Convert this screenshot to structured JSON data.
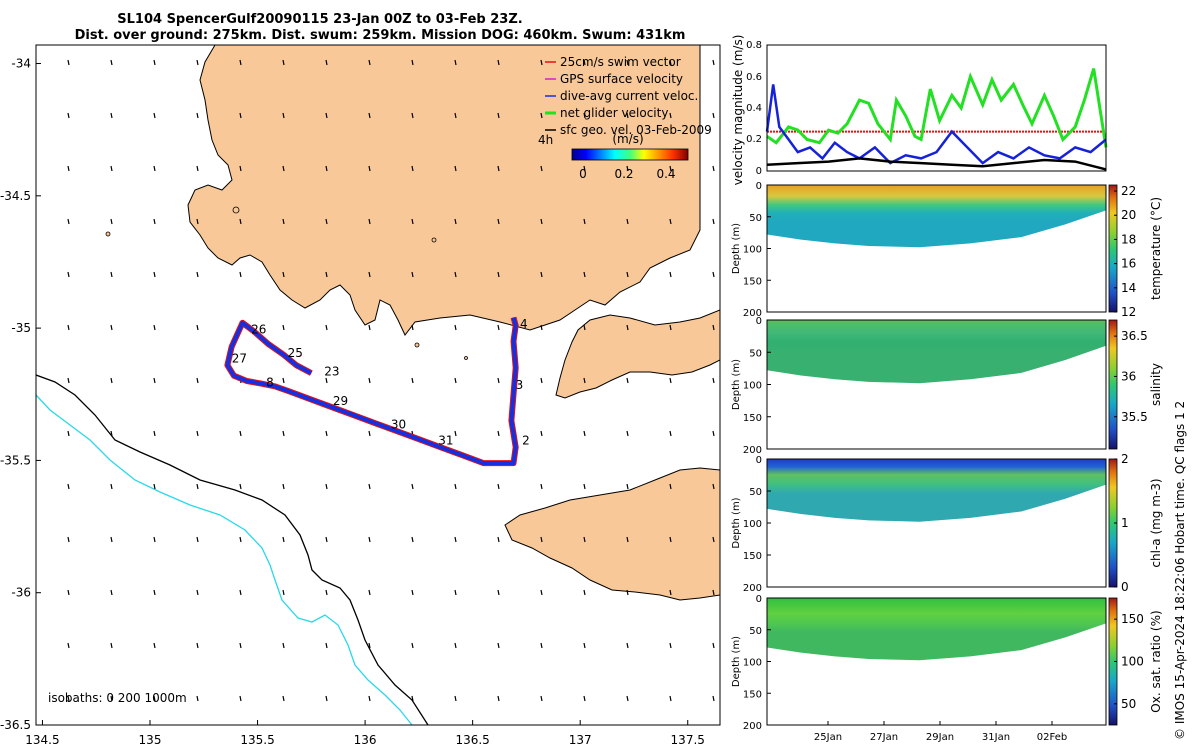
{
  "title_line1": "SL104 SpencerGulf20090115 23-Jan 00Z to 03-Feb 23Z.",
  "title_line2": "Dist. over ground: 275km. Dist. swum: 259km. Mission DOG: 460km. Swum: 431km",
  "credit": "© IMOS 15-Apr-2024 18:22:06 Hobart time. QC flags 1  2",
  "colors": {
    "land": "#f8c898",
    "track_red": "#e81010",
    "track_blue": "#1530e0",
    "isobath_0": "#000000",
    "isobath_200": "#2ad8e8",
    "net_glider": "#22e022",
    "dive_avg": "#1522d8",
    "geo_vel": "#000000",
    "swim_ref": "#e81010"
  },
  "chart_data": [
    {
      "type": "scatter",
      "name": "map",
      "xlim": [
        134.47,
        137.65
      ],
      "ylim": [
        -36.5,
        -33.93
      ],
      "xticks": [
        134.5,
        135,
        135.5,
        136,
        136.5,
        137,
        137.5
      ],
      "yticks": [
        -34,
        -34.5,
        -35,
        -35.5,
        -36,
        -36.5
      ],
      "xtick_labels": [
        "134.5",
        "135",
        "135.5",
        "136",
        "136.5",
        "137",
        "137.5"
      ],
      "ytick_labels": [
        "-34",
        "-34.5",
        "-35",
        "-35.5",
        "-36",
        "-36.5"
      ],
      "legend": [
        {
          "label": "25cm/s swim vector",
          "color": "#e81010"
        },
        {
          "label": "GPS surface velocity",
          "color": "#d020d0"
        },
        {
          "label": "dive-avg current veloc.",
          "color": "#1530e0"
        },
        {
          "label": "net glider velocity",
          "color": "#22e022"
        },
        {
          "label": "sfc geo. vel. 03-Feb-2009",
          "color": "#000000"
        }
      ],
      "legend_location": "top-right",
      "colorbar": {
        "label": "(m/s)",
        "ticks": [
          "0",
          "0.2",
          "0.4"
        ],
        "range": [
          0,
          0.5
        ],
        "prefix": "4h"
      },
      "isobath_label": "isobaths: 0   200  1000m",
      "day_labels": [
        {
          "text": "26",
          "lon": 135.47,
          "lat": -35.02
        },
        {
          "text": "27",
          "lon": 135.38,
          "lat": -35.13
        },
        {
          "text": "25",
          "lon": 135.64,
          "lat": -35.11
        },
        {
          "text": "23",
          "lon": 135.81,
          "lat": -35.18
        },
        {
          "text": "8",
          "lon": 135.54,
          "lat": -35.22
        },
        {
          "text": "29",
          "lon": 135.85,
          "lat": -35.29
        },
        {
          "text": "30",
          "lon": 136.12,
          "lat": -35.38
        },
        {
          "text": "31",
          "lon": 136.34,
          "lat": -35.44
        },
        {
          "text": "4",
          "lon": 136.72,
          "lat": -35.0
        },
        {
          "text": "3",
          "lon": 136.7,
          "lat": -35.23
        },
        {
          "text": "2",
          "lon": 136.73,
          "lat": -35.44
        }
      ],
      "track": {
        "lon": [
          135.75,
          135.68,
          135.62,
          135.55,
          135.48,
          135.43,
          135.38,
          135.36,
          135.39,
          135.45,
          135.52,
          135.58,
          135.65,
          135.75,
          135.85,
          135.95,
          136.05,
          136.15,
          136.25,
          136.35,
          136.45,
          136.55,
          136.62,
          136.69,
          136.7,
          136.68,
          136.69,
          136.7,
          136.69,
          136.7,
          136.69
        ],
        "lat": [
          -35.17,
          -35.14,
          -35.1,
          -35.06,
          -35.01,
          -34.98,
          -35.07,
          -35.14,
          -35.18,
          -35.2,
          -35.21,
          -35.22,
          -35.24,
          -35.27,
          -35.3,
          -35.33,
          -35.36,
          -35.39,
          -35.42,
          -35.45,
          -35.48,
          -35.51,
          -35.51,
          -35.51,
          -35.45,
          -35.35,
          -35.25,
          -35.15,
          -35.05,
          -34.99,
          -34.96
        ]
      }
    },
    {
      "type": "line",
      "name": "velocity",
      "ylabel": "velocity magnitude (m/s)",
      "ylim": [
        0,
        0.8
      ],
      "yticks": [
        "0",
        "0.2",
        "0.4",
        "0.6",
        "0.8"
      ],
      "xlim": [
        0,
        11
      ],
      "series": [
        {
          "color": "#22e022",
          "x": [
            0,
            0.3,
            0.7,
            1.0,
            1.3,
            1.7,
            2.0,
            2.3,
            2.6,
            3.0,
            3.3,
            3.6,
            4.0,
            4.2,
            4.5,
            4.8,
            5.0,
            5.3,
            5.6,
            6.0,
            6.3,
            6.6,
            7.0,
            7.3,
            7.6,
            8.0,
            8.3,
            8.6,
            9.0,
            9.3,
            9.6,
            10.0,
            10.3,
            10.6,
            11.0
          ],
          "y": [
            0.22,
            0.18,
            0.28,
            0.26,
            0.2,
            0.18,
            0.26,
            0.24,
            0.3,
            0.45,
            0.43,
            0.3,
            0.2,
            0.45,
            0.35,
            0.22,
            0.2,
            0.52,
            0.32,
            0.48,
            0.4,
            0.6,
            0.42,
            0.58,
            0.45,
            0.55,
            0.42,
            0.3,
            0.48,
            0.35,
            0.2,
            0.28,
            0.45,
            0.65,
            0.15
          ]
        },
        {
          "color": "#1522d8",
          "x": [
            0,
            0.2,
            0.4,
            0.7,
            1.0,
            1.4,
            1.8,
            2.2,
            2.6,
            3.0,
            3.5,
            4.0,
            4.5,
            5.0,
            5.5,
            6.0,
            6.5,
            7.0,
            7.5,
            8.0,
            8.5,
            9.0,
            9.5,
            10.0,
            10.5,
            11.0
          ],
          "y": [
            0.25,
            0.55,
            0.28,
            0.2,
            0.12,
            0.15,
            0.08,
            0.18,
            0.12,
            0.08,
            0.15,
            0.05,
            0.1,
            0.08,
            0.12,
            0.25,
            0.15,
            0.05,
            0.12,
            0.08,
            0.15,
            0.1,
            0.08,
            0.15,
            0.12,
            0.2
          ]
        },
        {
          "color": "#000000",
          "x": [
            0,
            1,
            2,
            3,
            4,
            5,
            6,
            7,
            8,
            9,
            10,
            11
          ],
          "y": [
            0.04,
            0.05,
            0.06,
            0.08,
            0.06,
            0.05,
            0.04,
            0.03,
            0.05,
            0.07,
            0.06,
            0.01
          ]
        }
      ],
      "reference_line": {
        "y": 0.25,
        "color": "#e81010"
      }
    },
    {
      "type": "heatmap",
      "name": "temperature",
      "colorbar_label": "temperature (°C)",
      "clim": [
        12,
        22.5
      ],
      "colorbar_ticks": [
        "12",
        "14",
        "16",
        "18",
        "20",
        "22"
      ],
      "ylabel": "Depth (m)",
      "yticks": [
        "0",
        "50",
        "100",
        "150",
        "200"
      ],
      "ylim": [
        0,
        200
      ]
    },
    {
      "type": "heatmap",
      "name": "salinity",
      "colorbar_label": "salinity",
      "clim": [
        35.1,
        36.7
      ],
      "colorbar_ticks": [
        "35.5",
        "36",
        "36.5"
      ],
      "ylabel": "Depth (m)",
      "yticks": [
        "0",
        "50",
        "100",
        "150",
        "200"
      ],
      "ylim": [
        0,
        200
      ]
    },
    {
      "type": "heatmap",
      "name": "chla",
      "colorbar_label": "chl-a (mg m-3)",
      "clim": [
        0,
        2
      ],
      "colorbar_ticks": [
        "0",
        "1",
        "2"
      ],
      "ylabel": "Depth (m)",
      "yticks": [
        "0",
        "50",
        "100",
        "150",
        "200"
      ],
      "ylim": [
        0,
        200
      ]
    },
    {
      "type": "heatmap",
      "name": "oxygen",
      "colorbar_label": "Ox. sat. ratio (%)",
      "clim": [
        25,
        175
      ],
      "colorbar_ticks": [
        "50",
        "100",
        "150"
      ],
      "ylabel": "Depth (m)",
      "yticks": [
        "0",
        "50",
        "100",
        "150",
        "200"
      ],
      "ylim": [
        0,
        200
      ],
      "xtick_labels": [
        "25Jan",
        "27Jan",
        "29Jan",
        "31Jan",
        "02Feb"
      ]
    }
  ]
}
